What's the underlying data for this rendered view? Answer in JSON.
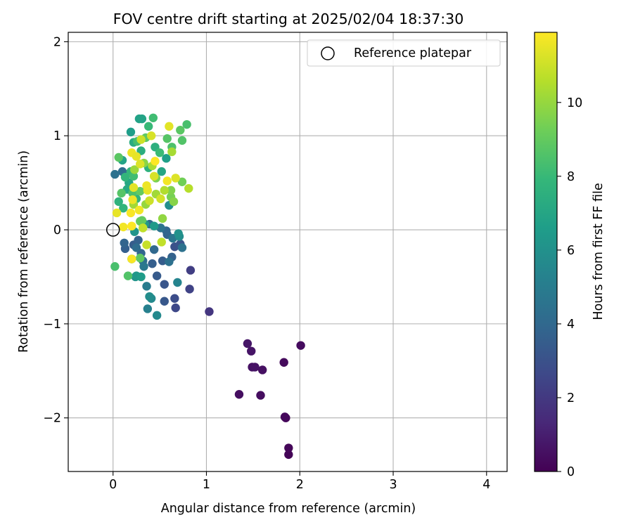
{
  "chart_data": {
    "type": "scatter",
    "title": "FOV centre drift starting at 2025/02/04 18:37:30",
    "xlabel": "Angular distance from reference (arcmin)",
    "ylabel": "Rotation from reference (arcmin)",
    "xlim": [
      -0.48,
      4.22
    ],
    "ylim": [
      -2.57,
      2.1
    ],
    "xticks": [
      0,
      1,
      2,
      3,
      4
    ],
    "xtick_labels": [
      "0",
      "1",
      "2",
      "3",
      "4"
    ],
    "yticks": [
      2,
      1,
      0,
      -1,
      -2
    ],
    "ytick_labels": [
      "2",
      "1",
      "0",
      "−1",
      "−2"
    ],
    "grid": true,
    "legend": {
      "placement": "top-right",
      "entries": [
        "Reference platepar"
      ]
    },
    "reference_point": {
      "x": 0,
      "y": 0,
      "label": "Reference platepar"
    },
    "colorbar": {
      "label": "Hours from first FF file",
      "range": [
        0,
        11.9
      ],
      "ticks": [
        0,
        2,
        4,
        6,
        8,
        10
      ],
      "tick_labels": [
        "0",
        "2",
        "4",
        "6",
        "8",
        "10"
      ],
      "colormap": [
        "#440154",
        "#482878",
        "#3e4989",
        "#31688e",
        "#26828e",
        "#1f9e89",
        "#35b779",
        "#6ece58",
        "#b5de2b",
        "#fde725"
      ]
    },
    "points": [
      [
        1.88,
        -2.39,
        0.1
      ],
      [
        1.88,
        -2.32,
        0.2
      ],
      [
        1.85,
        -2.0,
        0.15
      ],
      [
        1.84,
        -1.99,
        0.25
      ],
      [
        1.83,
        -1.41,
        0.3
      ],
      [
        2.01,
        -1.23,
        0.35
      ],
      [
        1.58,
        -1.76,
        0.4
      ],
      [
        1.35,
        -1.75,
        0.45
      ],
      [
        1.6,
        -1.49,
        0.5
      ],
      [
        1.49,
        -1.46,
        0.55
      ],
      [
        1.52,
        -1.46,
        0.6
      ],
      [
        1.48,
        -1.29,
        0.65
      ],
      [
        1.44,
        -1.21,
        0.7
      ],
      [
        1.03,
        -0.87,
        1.9
      ],
      [
        0.83,
        -0.43,
        2.2
      ],
      [
        0.82,
        -0.63,
        2.4
      ],
      [
        0.67,
        -0.83,
        2.6
      ],
      [
        0.66,
        -0.73,
        2.8
      ],
      [
        0.66,
        -0.18,
        3.0
      ],
      [
        0.72,
        -0.15,
        3.1
      ],
      [
        0.55,
        -0.58,
        3.2
      ],
      [
        0.55,
        -0.76,
        3.3
      ],
      [
        0.47,
        -0.49,
        3.4
      ],
      [
        0.53,
        -0.33,
        3.5
      ],
      [
        0.42,
        -0.36,
        3.6
      ],
      [
        0.63,
        -0.29,
        3.7
      ],
      [
        0.58,
        -0.05,
        3.8
      ],
      [
        0.57,
        -0.01,
        3.9
      ],
      [
        0.13,
        -0.2,
        3.6
      ],
      [
        0.12,
        -0.14,
        3.8
      ],
      [
        0.22,
        -0.16,
        3.5
      ],
      [
        0.27,
        -0.11,
        3.7
      ],
      [
        0.3,
        -0.25,
        3.9
      ],
      [
        0.44,
        -0.21,
        4.0
      ],
      [
        0.39,
        0.06,
        4.1
      ],
      [
        0.25,
        -0.19,
        4.2
      ],
      [
        0.32,
        -0.33,
        4.3
      ],
      [
        0.6,
        -0.34,
        4.4
      ],
      [
        0.74,
        -0.19,
        4.5
      ],
      [
        0.51,
        0.02,
        4.6
      ],
      [
        0.64,
        -0.09,
        4.7
      ],
      [
        0.1,
        0.62,
        4.2
      ],
      [
        0.02,
        0.59,
        4.4
      ],
      [
        0.33,
        -0.39,
        4.8
      ],
      [
        0.36,
        -0.6,
        5.0
      ],
      [
        0.37,
        -0.84,
        5.2
      ],
      [
        0.69,
        -0.56,
        5.4
      ],
      [
        0.47,
        -0.91,
        5.6
      ],
      [
        0.41,
        -0.73,
        5.6
      ],
      [
        0.39,
        -0.71,
        5.8
      ],
      [
        0.6,
        0.26,
        5.9
      ],
      [
        0.71,
        -0.07,
        5.8
      ],
      [
        0.7,
        -0.04,
        6.0
      ],
      [
        0.2,
        -0.31,
        5.9
      ],
      [
        0.24,
        -0.5,
        6.1
      ],
      [
        0.25,
        -0.49,
        6.3
      ],
      [
        0.3,
        -0.5,
        6.5
      ],
      [
        0.23,
        -0.02,
        6.2
      ],
      [
        0.19,
        1.04,
        6.6
      ],
      [
        0.28,
        1.18,
        6.8
      ],
      [
        0.31,
        1.18,
        6.9
      ],
      [
        0.57,
        0.76,
        6.7
      ],
      [
        0.34,
        0.06,
        6.3
      ],
      [
        0.44,
        0.04,
        6.4
      ],
      [
        0.52,
        0.62,
        7.0
      ],
      [
        0.1,
        0.74,
        6.9
      ],
      [
        0.17,
        0.5,
        7.1
      ],
      [
        0.15,
        0.43,
        7.2
      ],
      [
        0.22,
        0.93,
        7.3
      ],
      [
        0.3,
        0.84,
        7.4
      ],
      [
        0.45,
        0.88,
        7.5
      ],
      [
        0.38,
        0.66,
        7.6
      ],
      [
        0.25,
        0.33,
        7.7
      ],
      [
        0.13,
        0.56,
        7.8
      ],
      [
        0.19,
        0.62,
        7.9
      ],
      [
        0.06,
        0.3,
        7.6
      ],
      [
        0.11,
        0.23,
        7.8
      ],
      [
        0.38,
        1.1,
        8.0
      ],
      [
        0.43,
        1.19,
        8.2
      ],
      [
        0.79,
        1.12,
        8.4
      ],
      [
        0.74,
        0.95,
        8.6
      ],
      [
        0.72,
        1.06,
        8.8
      ],
      [
        0.63,
        0.88,
        8.5
      ],
      [
        0.58,
        0.97,
        8.7
      ],
      [
        0.35,
        0.98,
        8.9
      ],
      [
        0.26,
        0.94,
        8.3
      ],
      [
        0.5,
        0.82,
        8.1
      ],
      [
        0.22,
        0.57,
        8.2
      ],
      [
        0.21,
        0.39,
        8.5
      ],
      [
        0.09,
        0.39,
        8.7
      ],
      [
        0.06,
        0.77,
        8.8
      ],
      [
        0.16,
        -0.49,
        8.6
      ],
      [
        0.02,
        -0.39,
        8.4
      ],
      [
        0.29,
        -0.3,
        8.9
      ],
      [
        0.29,
        0.41,
        9.0
      ],
      [
        0.29,
        0.09,
        9.1
      ],
      [
        0.31,
        0.1,
        9.0
      ],
      [
        0.32,
        0.02,
        9.2
      ],
      [
        0.74,
        0.51,
        9.3
      ],
      [
        0.62,
        0.35,
        9.4
      ],
      [
        0.46,
        0.55,
        9.5
      ],
      [
        0.62,
        0.42,
        9.6
      ],
      [
        0.65,
        0.3,
        9.7
      ],
      [
        0.33,
        0.71,
        9.8
      ],
      [
        0.53,
        0.12,
        9.9
      ],
      [
        0.35,
        0.27,
        10.0
      ],
      [
        0.23,
        0.64,
        10.1
      ],
      [
        0.46,
        0.38,
        10.2
      ],
      [
        0.63,
        0.83,
        10.3
      ],
      [
        0.42,
        0.68,
        10.4
      ],
      [
        0.55,
        0.42,
        10.5
      ],
      [
        0.22,
        0.27,
        10.2
      ],
      [
        0.81,
        0.44,
        10.6
      ],
      [
        0.52,
        -0.13,
        10.8
      ],
      [
        0.36,
        -0.16,
        10.9
      ],
      [
        0.3,
        0.96,
        11.0
      ],
      [
        0.41,
        1.0,
        11.2
      ],
      [
        0.6,
        1.1,
        11.4
      ],
      [
        0.67,
        0.55,
        11.3
      ],
      [
        0.51,
        0.33,
        11.1
      ],
      [
        0.37,
        0.42,
        11.5
      ],
      [
        0.36,
        0.47,
        11.6
      ],
      [
        0.22,
        0.45,
        11.4
      ],
      [
        0.21,
        0.32,
        11.6
      ],
      [
        0.28,
        0.21,
        11.7
      ],
      [
        0.19,
        0.18,
        11.8
      ],
      [
        0.04,
        0.18,
        11.5
      ],
      [
        0.11,
        0.03,
        11.7
      ],
      [
        0.2,
        0.04,
        11.9
      ],
      [
        0.2,
        -0.31,
        11.8
      ],
      [
        0.2,
        0.82,
        11.6
      ],
      [
        0.25,
        0.78,
        11.5
      ],
      [
        0.32,
        0.02,
        10.8
      ],
      [
        0.45,
        0.73,
        11.9
      ],
      [
        0.58,
        0.52,
        11.7
      ],
      [
        0.29,
        0.7,
        11.3
      ],
      [
        0.44,
        0.57,
        11.2
      ],
      [
        0.39,
        0.31,
        11.0
      ]
    ]
  }
}
